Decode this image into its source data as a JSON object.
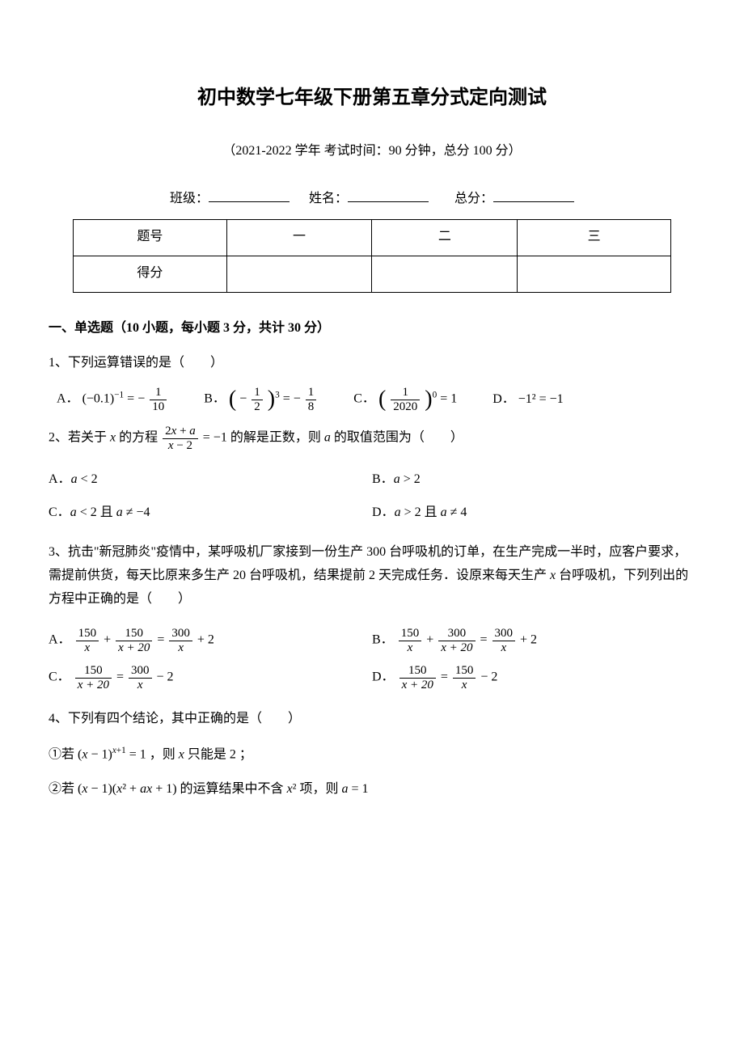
{
  "title": "初中数学七年级下册第五章分式定向测试",
  "subtitle": "（2021-2022 学年  考试时间：90 分钟，总分 100 分）",
  "fill": {
    "class_label": "班级：",
    "name_label": "姓名：",
    "score_label": "总分："
  },
  "score_table": {
    "rows": [
      [
        "题号",
        "一",
        "二",
        "三"
      ],
      [
        "得分",
        "",
        "",
        ""
      ]
    ],
    "col_widths": [
      "190px",
      "180px",
      "180px",
      "190px"
    ]
  },
  "section1_head": "一、单选题（10 小题，每小题 3 分，共计 30 分）",
  "q1": {
    "stem": "1、下列运算错误的是（　　）",
    "A_label": "A．",
    "B_label": "B．",
    "C_label": "C．",
    "D_label": "D．",
    "A_lhs_base": "(−0.1)",
    "A_lhs_exp": "−1",
    "A_eq": " = ",
    "A_neg": "−",
    "A_num": "1",
    "A_den": "10",
    "B_neg1": "−",
    "B_num1": "1",
    "B_den1": "2",
    "B_exp": "3",
    "B_eq": " = ",
    "B_neg2": "−",
    "B_num2": "1",
    "B_den2": "8",
    "C_num": "1",
    "C_den": "2020",
    "C_exp": "0",
    "C_eq": " = 1",
    "D_text": "−1² = −1"
  },
  "q2": {
    "stem_pre": "2、若关于 ",
    "stem_x": "x",
    "stem_mid1": " 的方程 ",
    "frac_num_a": "2",
    "frac_num_x": "x",
    "frac_num_b": " + ",
    "frac_num_c": "a",
    "frac_den_x": "x",
    "frac_den_b": " − 2",
    "stem_mid2": " = −1 的解是正数，则 ",
    "stem_a": "a",
    "stem_post": " 的取值范围为（　　）",
    "A": "A．",
    "A_txt1": "a",
    "A_txt2": " < 2",
    "B": "B．",
    "B_txt1": "a",
    "B_txt2": " > 2",
    "C": "C．",
    "C_txt1": "a",
    "C_txt2": " < 2 且 ",
    "C_txt3": "a",
    "C_txt4": " ≠ −4",
    "D": "D．",
    "D_txt1": "a",
    "D_txt2": " > 2 且 ",
    "D_txt3": "a",
    "D_txt4": " ≠ 4"
  },
  "q3": {
    "stem": "3、抗击\"新冠肺炎\"疫情中，某呼吸机厂家接到一份生产 300 台呼吸机的订单，在生产完成一半时，应客户要求，需提前供货，每天比原来多生产 20 台呼吸机，结果提前 2 天完成任务．设原来每天生产 ",
    "stem_x": "x",
    "stem2": " 台呼吸机，下列列出的方程中正确的是（　　）",
    "A": "A．",
    "B": "B．",
    "C": "C．",
    "D": "D．",
    "n150": "150",
    "n300": "300",
    "x": "x",
    "xp20": "x + 20",
    "plus": " + ",
    "eq": " = ",
    "p2": " + 2",
    "m2": " − 2"
  },
  "q4": {
    "stem": "4、下列有四个结论，其中正确的是（　　）",
    "p1_pre": "①若 ",
    "p1_base_a": "(",
    "p1_x": "x",
    "p1_base_b": " − 1)",
    "p1_exp_a": "x",
    "p1_exp_b": "+1",
    "p1_mid": " = 1 ，则 ",
    "p1_x2": "x",
    "p1_post": " 只能是 2 ；",
    "p2_pre": "②若 ",
    "p2_a": "(",
    "p2_x1": "x",
    "p2_b": " − 1)(",
    "p2_x2": "x",
    "p2_c": "² + ",
    "p2_ax": "ax",
    "p2_d": " + 1)",
    "p2_mid": " 的运算结果中不含 ",
    "p2_x3": "x",
    "p2_sq": "²",
    "p2_mid2": " 项，则 ",
    "p2_a2": "a",
    "p2_post": " = 1"
  }
}
